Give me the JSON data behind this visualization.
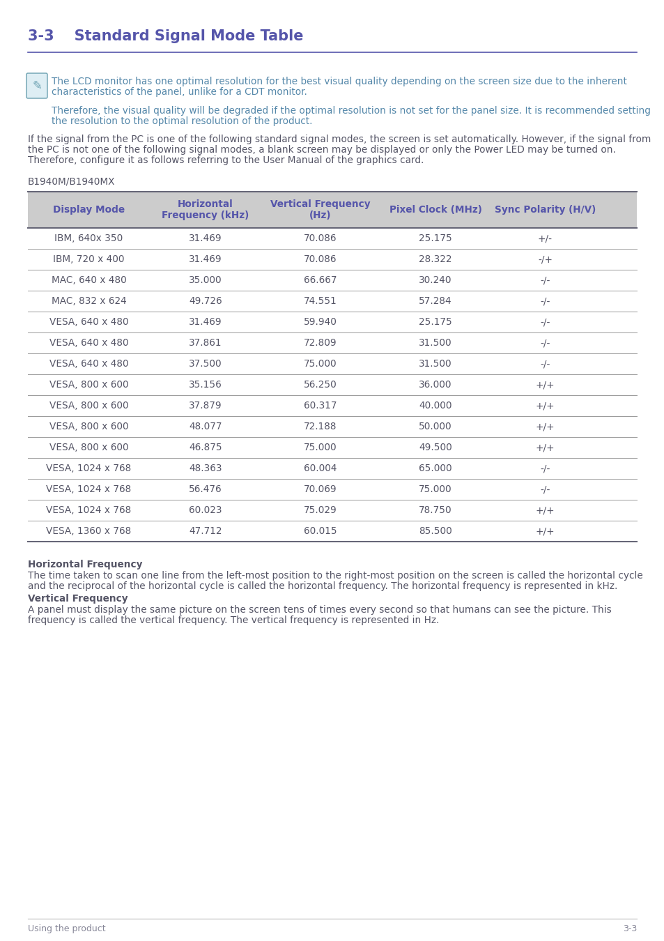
{
  "title": "3-3    Standard Signal Mode Table",
  "title_color": "#5555aa",
  "title_line_color": "#5555aa",
  "note_icon_color": "#6aa0b0",
  "note_text_color": "#5588aa",
  "note_line1": "The LCD monitor has one optimal resolution for the best visual quality depending on the screen size due to the inherent",
  "note_line2": "characteristics of the panel, unlike for a CDT monitor.",
  "note_line3": "Therefore, the visual quality will be degraded if the optimal resolution is not set for the panel size. It is recommended setting",
  "note_line4": "the resolution to the optimal resolution of the product.",
  "body_text_color": "#555566",
  "body_para1_l1": "If the signal from the PC is one of the following standard signal modes, the screen is set automatically. However, if the signal from",
  "body_para1_l2": "the PC is not one of the following signal modes, a blank screen may be displayed or only the Power LED may be turned on.",
  "body_para1_l3": "Therefore, configure it as follows referring to the User Manual of the graphics card.",
  "model_label": "B1940M/B1940MX",
  "table_header_bg": "#cccccc",
  "table_header_text_color": "#5555aa",
  "table_text_color": "#555566",
  "table_border_thin_color": "#999999",
  "table_border_thick_color": "#666677",
  "col_headers": [
    "Display Mode",
    "Horizontal\nFrequency (kHz)",
    "Vertical Frequency\n(Hz)",
    "Pixel Clock (MHz)",
    "Sync Polarity (H/V)"
  ],
  "table_data": [
    [
      "IBM, 640x 350",
      "31.469",
      "70.086",
      "25.175",
      "+/-"
    ],
    [
      "IBM, 720 x 400",
      "31.469",
      "70.086",
      "28.322",
      "-/+"
    ],
    [
      "MAC, 640 x 480",
      "35.000",
      "66.667",
      "30.240",
      "-/-"
    ],
    [
      "MAC, 832 x 624",
      "49.726",
      "74.551",
      "57.284",
      "-/-"
    ],
    [
      "VESA, 640 x 480",
      "31.469",
      "59.940",
      "25.175",
      "-/-"
    ],
    [
      "VESA, 640 x 480",
      "37.861",
      "72.809",
      "31.500",
      "-/-"
    ],
    [
      "VESA, 640 x 480",
      "37.500",
      "75.000",
      "31.500",
      "-/-"
    ],
    [
      "VESA, 800 x 600",
      "35.156",
      "56.250",
      "36.000",
      "+/+"
    ],
    [
      "VESA, 800 x 600",
      "37.879",
      "60.317",
      "40.000",
      "+/+"
    ],
    [
      "VESA, 800 x 600",
      "48.077",
      "72.188",
      "50.000",
      "+/+"
    ],
    [
      "VESA, 800 x 600",
      "46.875",
      "75.000",
      "49.500",
      "+/+"
    ],
    [
      "VESA, 1024 x 768",
      "48.363",
      "60.004",
      "65.000",
      "-/-"
    ],
    [
      "VESA, 1024 x 768",
      "56.476",
      "70.069",
      "75.000",
      "-/-"
    ],
    [
      "VESA, 1024 x 768",
      "60.023",
      "75.029",
      "78.750",
      "+/+"
    ],
    [
      "VESA, 1360 x 768",
      "47.712",
      "60.015",
      "85.500",
      "+/+"
    ]
  ],
  "hfreq_title": "Horizontal Frequency",
  "hfreq_body_l1": "The time taken to scan one line from the left-most position to the right-most position on the screen is called the horizontal cycle",
  "hfreq_body_l2": "and the reciprocal of the horizontal cycle is called the horizontal frequency. The horizontal frequency is represented in kHz.",
  "vfreq_title": "Vertical Frequency",
  "vfreq_body_l1": "A panel must display the same picture on the screen tens of times every second so that humans can see the picture. This",
  "vfreq_body_l2": "frequency is called the vertical frequency. The vertical frequency is represented in Hz.",
  "footer_left": "Using the product",
  "footer_right": "3-3",
  "footer_line_color": "#bbbbbb",
  "background_color": "#ffffff"
}
